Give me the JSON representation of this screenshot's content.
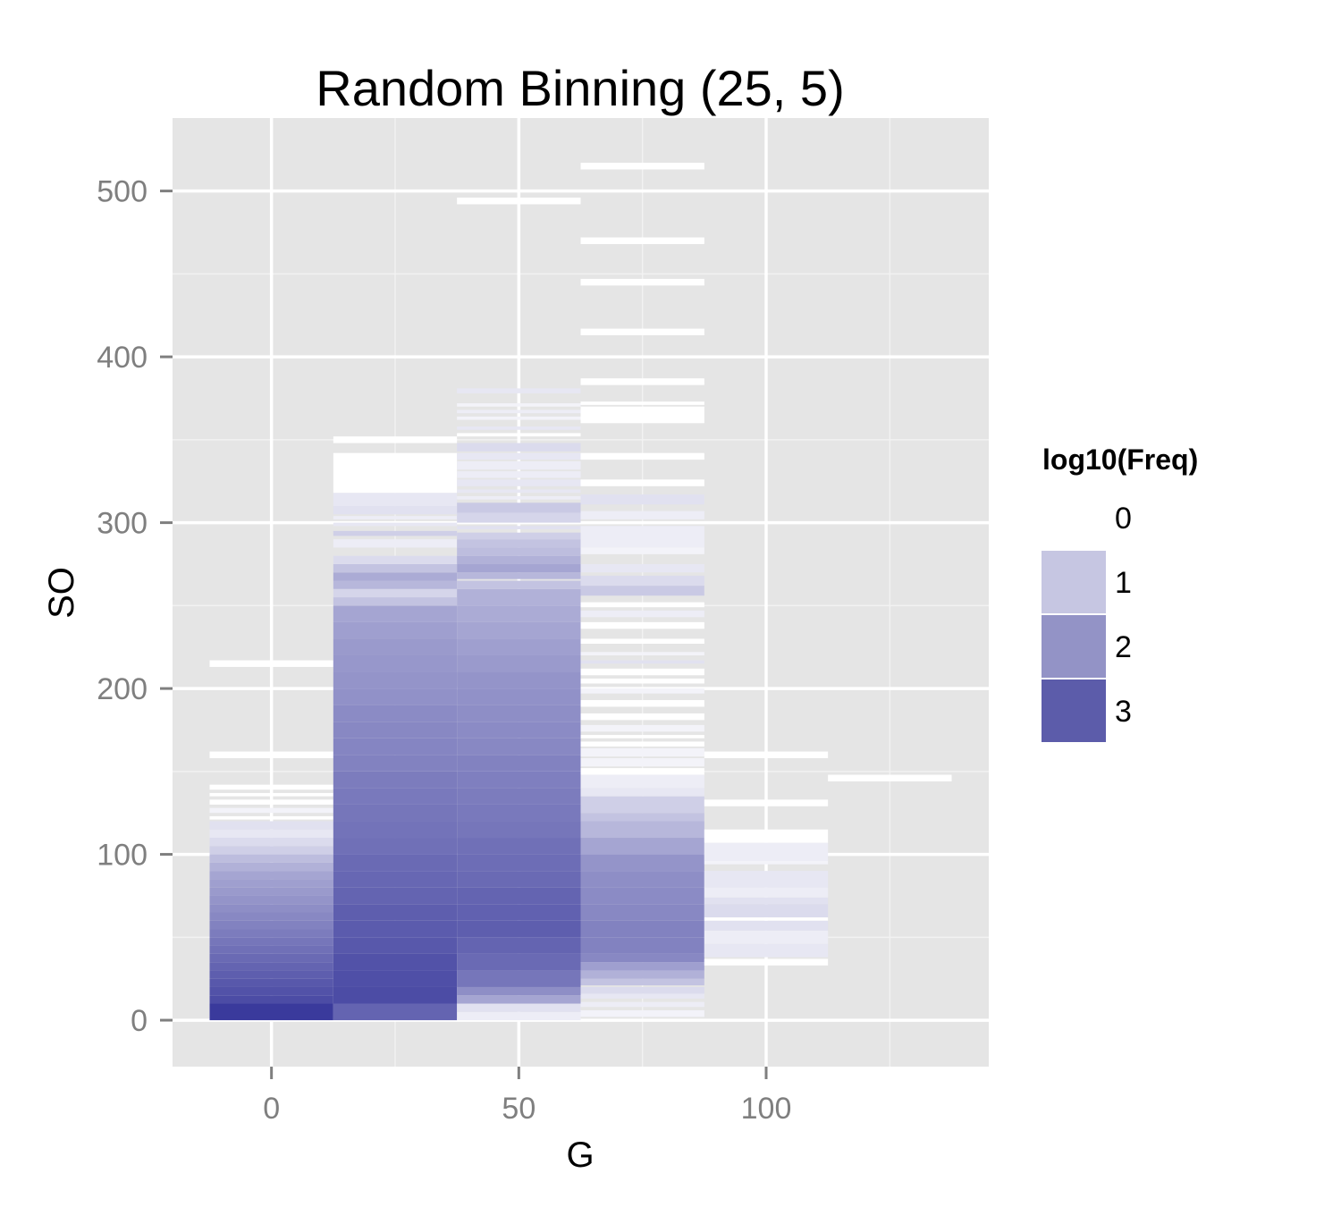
{
  "chart_data": {
    "type": "heatmap",
    "title": "Random Binning (25, 5)",
    "xlabel": "G",
    "ylabel": "SO",
    "xlim": [
      -20,
      145
    ],
    "ylim": [
      -28,
      544
    ],
    "x_ticks": [
      0,
      50,
      100
    ],
    "x_tick_labels": [
      "0",
      "50",
      "100"
    ],
    "x_minor_ticks": [
      25,
      75,
      125
    ],
    "y_ticks": [
      0,
      100,
      200,
      300,
      400,
      500
    ],
    "y_tick_labels": [
      "0",
      "100",
      "200",
      "300",
      "400",
      "500"
    ],
    "y_minor_ticks": [
      50,
      150,
      250,
      350,
      450
    ],
    "grid": true,
    "panel_background": "#e5e5e5",
    "color_low": "#ffffff",
    "color_high": "#3a3a9c",
    "legend": {
      "title": "log10(Freq)",
      "placement": "right",
      "entries": [
        {
          "label": "0",
          "color": "#ffffff"
        },
        {
          "label": "1",
          "color": "#c6c6e2"
        },
        {
          "label": "2",
          "color": "#9393c6"
        },
        {
          "label": "3",
          "color": "#5c5caa"
        }
      ]
    },
    "columns": [
      {
        "x0": -12.5,
        "x1": 12.5,
        "bins": [
          [
            0,
            10,
            3.3
          ],
          [
            10,
            15,
            3.0
          ],
          [
            15,
            20,
            2.9
          ],
          [
            20,
            25,
            2.8
          ],
          [
            25,
            30,
            2.7
          ],
          [
            30,
            35,
            2.6
          ],
          [
            35,
            40,
            2.5
          ],
          [
            40,
            45,
            2.4
          ],
          [
            45,
            50,
            2.3
          ],
          [
            50,
            55,
            2.2
          ],
          [
            55,
            60,
            2.1
          ],
          [
            60,
            65,
            2.0
          ],
          [
            65,
            70,
            1.9
          ],
          [
            70,
            75,
            1.8
          ],
          [
            75,
            80,
            1.7
          ],
          [
            80,
            85,
            1.6
          ],
          [
            85,
            90,
            1.5
          ],
          [
            90,
            95,
            1.3
          ],
          [
            95,
            100,
            1.1
          ],
          [
            100,
            105,
            0.8
          ],
          [
            105,
            110,
            0.6
          ],
          [
            110,
            115,
            0.4
          ],
          [
            115,
            120,
            0.5
          ],
          [
            121,
            123,
            0.0
          ],
          [
            125,
            128,
            0.2
          ],
          [
            130,
            133,
            0.0
          ],
          [
            135,
            137,
            0.0
          ],
          [
            139,
            142,
            0.0
          ],
          [
            158,
            162,
            0.0
          ],
          [
            213,
            217,
            0.0
          ]
        ]
      },
      {
        "x0": 12.5,
        "x1": 37.5,
        "bins": [
          [
            0,
            10,
            2.6
          ],
          [
            10,
            20,
            3.0
          ],
          [
            20,
            30,
            2.95
          ],
          [
            30,
            40,
            2.9
          ],
          [
            40,
            50,
            2.8
          ],
          [
            50,
            60,
            2.75
          ],
          [
            60,
            70,
            2.7
          ],
          [
            70,
            80,
            2.6
          ],
          [
            80,
            90,
            2.55
          ],
          [
            90,
            100,
            2.5
          ],
          [
            100,
            110,
            2.4
          ],
          [
            110,
            120,
            2.35
          ],
          [
            120,
            130,
            2.3
          ],
          [
            130,
            140,
            2.25
          ],
          [
            140,
            150,
            2.2
          ],
          [
            150,
            160,
            2.1
          ],
          [
            160,
            170,
            2.05
          ],
          [
            170,
            180,
            2.0
          ],
          [
            180,
            190,
            1.95
          ],
          [
            190,
            200,
            1.85
          ],
          [
            200,
            210,
            1.8
          ],
          [
            210,
            220,
            1.75
          ],
          [
            220,
            230,
            1.7
          ],
          [
            230,
            240,
            1.6
          ],
          [
            240,
            250,
            1.5
          ],
          [
            250,
            255,
            1.0
          ],
          [
            255,
            260,
            0.7
          ],
          [
            260,
            265,
            1.2
          ],
          [
            265,
            270,
            1.4
          ],
          [
            270,
            275,
            1.0
          ],
          [
            275,
            280,
            0.6
          ],
          [
            285,
            290,
            0.3
          ],
          [
            292,
            295,
            0.8
          ],
          [
            298,
            300,
            0.4
          ],
          [
            302,
            304,
            0.3
          ],
          [
            305,
            310,
            0.5
          ],
          [
            310,
            318,
            0.4
          ],
          [
            318,
            342,
            0.0
          ],
          [
            348,
            352,
            0.0
          ]
        ]
      },
      {
        "x0": 37.5,
        "x1": 62.5,
        "bins": [
          [
            0,
            5,
            0.3
          ],
          [
            5,
            10,
            0.5
          ],
          [
            10,
            15,
            1.5
          ],
          [
            15,
            20,
            1.9
          ],
          [
            20,
            30,
            2.3
          ],
          [
            30,
            40,
            2.5
          ],
          [
            40,
            50,
            2.6
          ],
          [
            50,
            60,
            2.7
          ],
          [
            60,
            70,
            2.65
          ],
          [
            70,
            80,
            2.6
          ],
          [
            80,
            90,
            2.5
          ],
          [
            90,
            100,
            2.45
          ],
          [
            100,
            110,
            2.4
          ],
          [
            110,
            120,
            2.3
          ],
          [
            120,
            130,
            2.25
          ],
          [
            130,
            140,
            2.2
          ],
          [
            140,
            150,
            2.15
          ],
          [
            150,
            160,
            2.1
          ],
          [
            160,
            170,
            2.0
          ],
          [
            170,
            180,
            1.95
          ],
          [
            180,
            190,
            1.9
          ],
          [
            190,
            200,
            1.85
          ],
          [
            200,
            210,
            1.8
          ],
          [
            210,
            220,
            1.7
          ],
          [
            220,
            230,
            1.6
          ],
          [
            230,
            240,
            1.5
          ],
          [
            240,
            250,
            1.4
          ],
          [
            250,
            260,
            1.3
          ],
          [
            260,
            265,
            1.0
          ],
          [
            266,
            270,
            1.2
          ],
          [
            270,
            275,
            1.5
          ],
          [
            275,
            280,
            1.3
          ],
          [
            280,
            285,
            1.1
          ],
          [
            285,
            290,
            1.0
          ],
          [
            290,
            294,
            0.8
          ],
          [
            296,
            298,
            0.5
          ],
          [
            300,
            306,
            0.7
          ],
          [
            306,
            312,
            0.9
          ],
          [
            314,
            316,
            0.3
          ],
          [
            318,
            320,
            0.4
          ],
          [
            322,
            326,
            0.4
          ],
          [
            327,
            331,
            0.3
          ],
          [
            332,
            337,
            0.3
          ],
          [
            338,
            342,
            0.4
          ],
          [
            343,
            348,
            0.6
          ],
          [
            352,
            354,
            0.0
          ],
          [
            356,
            358,
            0.4
          ],
          [
            362,
            364,
            0.2
          ],
          [
            366,
            368,
            0.3
          ],
          [
            370,
            372,
            0.2
          ],
          [
            378,
            381,
            0.4
          ],
          [
            492,
            496,
            0.0
          ]
        ]
      },
      {
        "x0": 62.5,
        "x1": 87.5,
        "bins": [
          [
            2,
            6,
            0.2
          ],
          [
            8,
            11,
            0.3
          ],
          [
            13,
            16,
            0.4
          ],
          [
            16,
            20,
            0.6
          ],
          [
            21,
            25,
            1.0
          ],
          [
            25,
            30,
            1.3
          ],
          [
            30,
            35,
            1.6
          ],
          [
            35,
            40,
            2.0
          ],
          [
            40,
            50,
            2.1
          ],
          [
            50,
            60,
            2.1
          ],
          [
            60,
            70,
            2.0
          ],
          [
            70,
            80,
            1.95
          ],
          [
            80,
            90,
            1.9
          ],
          [
            90,
            100,
            1.8
          ],
          [
            100,
            110,
            1.5
          ],
          [
            110,
            120,
            1.2
          ],
          [
            120,
            125,
            1.0
          ],
          [
            125,
            135,
            0.8
          ],
          [
            135,
            140,
            0.4
          ],
          [
            140,
            148,
            0.3
          ],
          [
            148,
            152,
            0.0
          ],
          [
            153,
            158,
            0.2
          ],
          [
            159,
            164,
            0.2
          ],
          [
            165,
            168,
            0.0
          ],
          [
            170,
            172,
            0.0
          ],
          [
            174,
            178,
            0.2
          ],
          [
            181,
            185,
            0.0
          ],
          [
            189,
            193,
            0.0
          ],
          [
            197,
            200,
            0.2
          ],
          [
            203,
            206,
            0.0
          ],
          [
            208,
            212,
            0.0
          ],
          [
            215,
            217,
            0.5
          ],
          [
            220,
            222,
            0.2
          ],
          [
            227,
            230,
            0.0
          ],
          [
            236,
            240,
            0.0
          ],
          [
            243,
            247,
            0.3
          ],
          [
            249,
            252,
            0.0
          ],
          [
            256,
            262,
            0.9
          ],
          [
            262,
            268,
            0.6
          ],
          [
            270,
            275,
            0.4
          ],
          [
            281,
            285,
            0.2
          ],
          [
            285,
            298,
            0.3
          ],
          [
            302,
            307,
            0.3
          ],
          [
            311,
            317,
            0.5
          ],
          [
            322,
            326,
            0.0
          ],
          [
            338,
            342,
            0.0
          ],
          [
            360,
            370,
            0.0
          ],
          [
            371,
            373,
            0.0
          ],
          [
            383,
            387,
            0.0
          ],
          [
            413,
            417,
            0.0
          ],
          [
            443,
            447,
            0.0
          ],
          [
            468,
            472,
            0.0
          ],
          [
            513,
            517,
            0.0
          ]
        ]
      },
      {
        "x0": 87.5,
        "x1": 112.5,
        "bins": [
          [
            33,
            37,
            0.0
          ],
          [
            38,
            46,
            0.4
          ],
          [
            46,
            54,
            0.3
          ],
          [
            54,
            60,
            0.5
          ],
          [
            60,
            62,
            0.0
          ],
          [
            62,
            70,
            0.6
          ],
          [
            70,
            74,
            0.5
          ],
          [
            74,
            80,
            0.3
          ],
          [
            80,
            90,
            0.4
          ],
          [
            94,
            96,
            0.2
          ],
          [
            96,
            107,
            0.3
          ],
          [
            107,
            115,
            0.0
          ],
          [
            129,
            133,
            0.0
          ],
          [
            158,
            162,
            0.0
          ]
        ]
      },
      {
        "x0": 112.5,
        "x1": 137.5,
        "bins": [
          [
            144,
            148,
            0.0
          ]
        ]
      }
    ]
  }
}
